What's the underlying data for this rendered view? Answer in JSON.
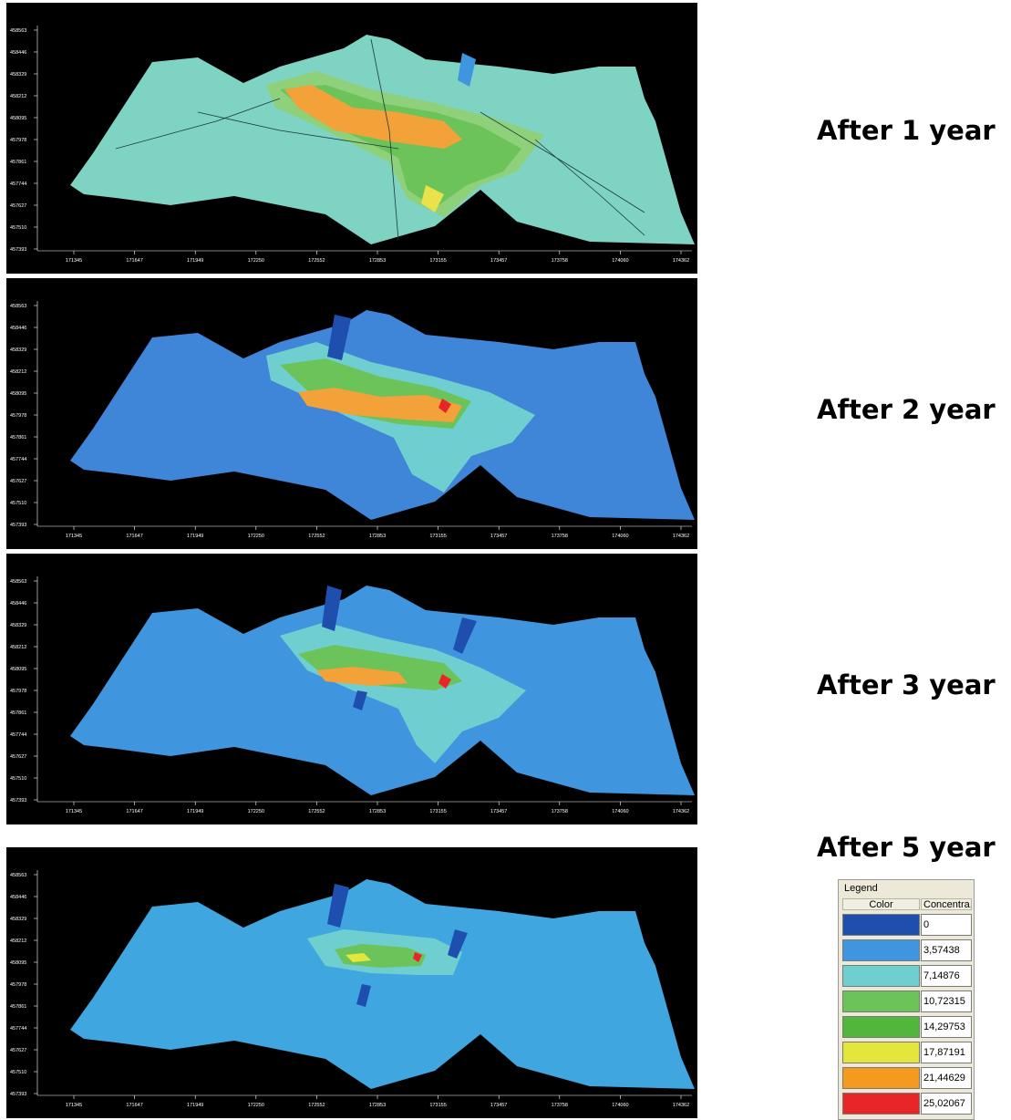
{
  "panels": [
    {
      "caption": "After 1 year",
      "stage": 1
    },
    {
      "caption": "After 2 year",
      "stage": 2
    },
    {
      "caption": "After 3 year",
      "stage": 3
    },
    {
      "caption": "After 5 year",
      "stage": 4
    }
  ],
  "axes": {
    "y_ticks": [
      "458563",
      "458446",
      "458329",
      "458212",
      "458095",
      "457978",
      "457861",
      "457744",
      "457627",
      "457510",
      "457393"
    ],
    "x_ticks": [
      "171345",
      "171647",
      "171949",
      "172250",
      "172552",
      "172853",
      "173155",
      "173457",
      "173758",
      "174060",
      "174362"
    ]
  },
  "legend": {
    "title": "Legend",
    "col_color": "Color",
    "col_conc": "Concentra...",
    "items": [
      {
        "value": "0",
        "color": "#1f4fae"
      },
      {
        "value": "3,57438",
        "color": "#3f96de"
      },
      {
        "value": "7,14876",
        "color": "#6fcfd0"
      },
      {
        "value": "10,72315",
        "color": "#6cc35a"
      },
      {
        "value": "14,29753",
        "color": "#52b63c"
      },
      {
        "value": "17,87191",
        "color": "#e4e63c"
      },
      {
        "value": "21,44629",
        "color": "#f39a1f"
      },
      {
        "value": "25,02067",
        "color": "#e8262a"
      }
    ]
  }
}
